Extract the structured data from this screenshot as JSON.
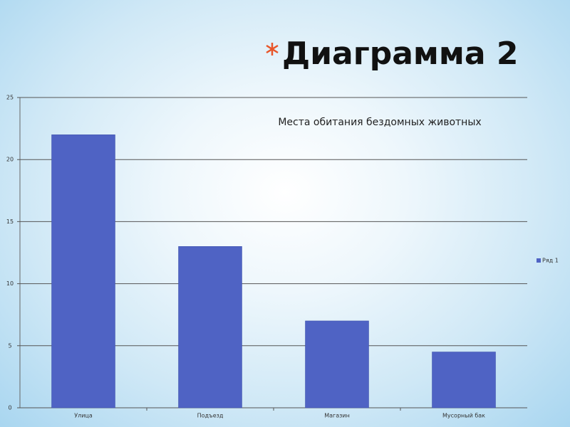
{
  "slide_title": "Диаграмма 2",
  "chart_data": {
    "type": "bar",
    "title": "Места обитания бездомных животных",
    "categories": [
      "Улица",
      "Подъезд",
      "Магазин",
      "Мусорный бак"
    ],
    "series": [
      {
        "name": "Ряд 1",
        "color": "#4f63c4",
        "values": [
          22,
          13,
          7,
          4.5
        ]
      }
    ],
    "ylim": [
      0,
      25
    ],
    "yticks": [
      0,
      5,
      10,
      15,
      20,
      25
    ],
    "grid": true,
    "legend": "right"
  }
}
